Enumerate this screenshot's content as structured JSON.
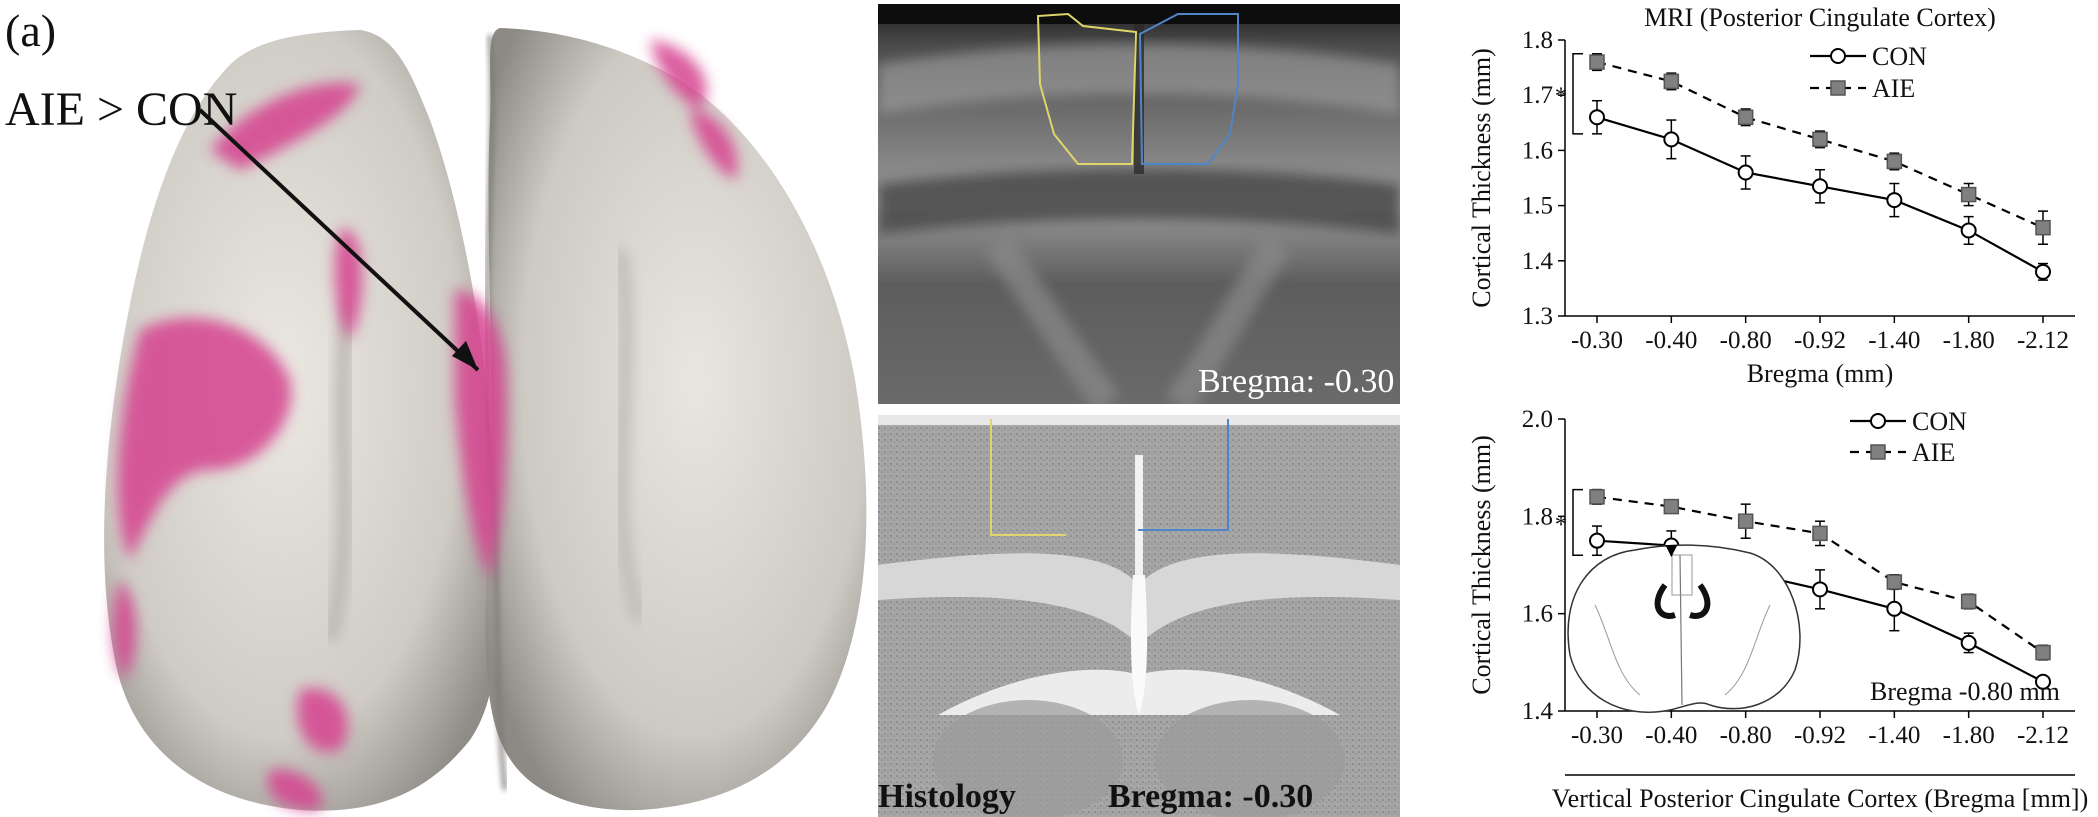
{
  "figure": {
    "panel_label": "(a)",
    "brain_annotation": "AIE > CON",
    "colors": {
      "brain_surface": "#d6d3cc",
      "highlight": "#d6438f",
      "roi_left": "#e0d56a",
      "roi_right": "#4f86c8"
    }
  },
  "mri": {
    "label": "Bregma:  -0.30"
  },
  "histology": {
    "label_left": "Histology",
    "label_right": "Bregma: -0.30"
  },
  "chart_data": [
    {
      "type": "line",
      "title": "MRI (Posterior Cingulate Cortex)",
      "xlabel": "Bregma (mm)",
      "ylabel": "Cortical Thickness (mm)",
      "categories": [
        "-0.30",
        "-0.40",
        "-0.80",
        "-0.92",
        "-1.40",
        "-1.80",
        "-2.12"
      ],
      "ylim": [
        1.3,
        1.8
      ],
      "yticks": [
        "1.3",
        "1.4",
        "1.5",
        "1.6",
        "1.7",
        "1.8"
      ],
      "legend_position": "top-right",
      "significance_marker": "*",
      "series": [
        {
          "name": "CON",
          "marker": "open-circle",
          "line": "solid",
          "values": [
            1.66,
            1.62,
            1.56,
            1.535,
            1.51,
            1.455,
            1.38
          ],
          "errors": [
            0.03,
            0.035,
            0.03,
            0.03,
            0.03,
            0.025,
            0.015
          ]
        },
        {
          "name": "AIE",
          "marker": "filled-square",
          "line": "dashed",
          "values": [
            1.76,
            1.725,
            1.66,
            1.62,
            1.58,
            1.52,
            1.46
          ],
          "errors": [
            0.015,
            0.015,
            0.015,
            0.015,
            0.015,
            0.02,
            0.03
          ]
        }
      ]
    },
    {
      "type": "line",
      "title": "",
      "xlabel": "Vertical Posterior Cingulate Cortex (Bregma [mm])",
      "ylabel": "Cortical Thickness (mm)",
      "categories": [
        "-0.30",
        "-0.40",
        "-0.80",
        "-0.92",
        "-1.40",
        "-1.80",
        "-2.12"
      ],
      "ylim": [
        1.4,
        2.0
      ],
      "yticks": [
        "1.4",
        "1.6",
        "1.8",
        "2.0"
      ],
      "legend_position": "top-right",
      "significance_marker": "*",
      "inset_label": "Bregma -0.80 mm",
      "series": [
        {
          "name": "CON",
          "marker": "open-circle",
          "line": "solid",
          "values": [
            1.75,
            1.74,
            1.685,
            1.65,
            1.61,
            1.54,
            1.46
          ],
          "errors": [
            0.03,
            0.03,
            0.035,
            0.04,
            0.045,
            0.02,
            0.01
          ]
        },
        {
          "name": "AIE",
          "marker": "filled-square",
          "line": "dashed",
          "values": [
            1.84,
            1.82,
            1.79,
            1.765,
            1.665,
            1.625,
            1.52
          ],
          "errors": [
            0.015,
            0.01,
            0.035,
            0.025,
            0.015,
            0.015,
            0.015
          ]
        }
      ]
    }
  ]
}
